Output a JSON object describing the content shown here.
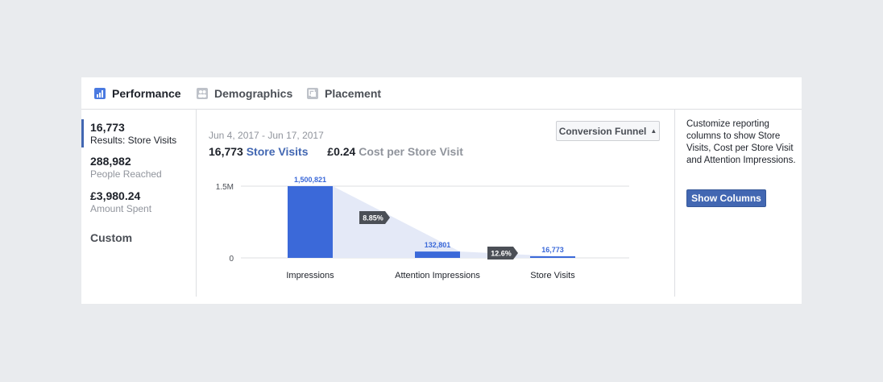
{
  "tabs": [
    {
      "label": "Performance",
      "icon": "bar-chart-icon"
    },
    {
      "label": "Demographics",
      "icon": "people-icon"
    },
    {
      "label": "Placement",
      "icon": "placement-icon"
    }
  ],
  "sidebar": {
    "metrics": [
      {
        "value": "16,773",
        "label": "Results: Store Visits"
      },
      {
        "value": "288,982",
        "label": "People Reached"
      },
      {
        "value": "£3,980.24",
        "label": "Amount Spent"
      }
    ],
    "custom_label": "Custom"
  },
  "report": {
    "date_range": "Jun 4, 2017 - Jun 17, 2017",
    "result_value": "16,773",
    "result_label": "Store Visits",
    "cost_value": "£0.24",
    "cost_label": "Cost per Store Visit",
    "dropdown_label": "Conversion Funnel"
  },
  "colors": {
    "accent": "#4267b2",
    "bar": "#3b69d9",
    "funnel": "#e4e9f7",
    "badge": "#4b4f56"
  },
  "chart_data": {
    "type": "bar",
    "categories": [
      "Impressions",
      "Attention Impressions",
      "Store Visits"
    ],
    "values": [
      1500821,
      132801,
      16773
    ],
    "data_labels": [
      "1,500,821",
      "132,801",
      "16,773"
    ],
    "conversion_rates": [
      "8.85%",
      "12.6%"
    ],
    "ytick_labels": [
      "1.5M",
      "0"
    ],
    "yticks": [
      1500000,
      0
    ],
    "ylim": [
      0,
      1500000
    ],
    "grid": true
  },
  "panel": {
    "description": "Customize reporting columns to show Store Visits, Cost per Store Visit and Attention Impressions.",
    "button_label": "Show Columns"
  }
}
